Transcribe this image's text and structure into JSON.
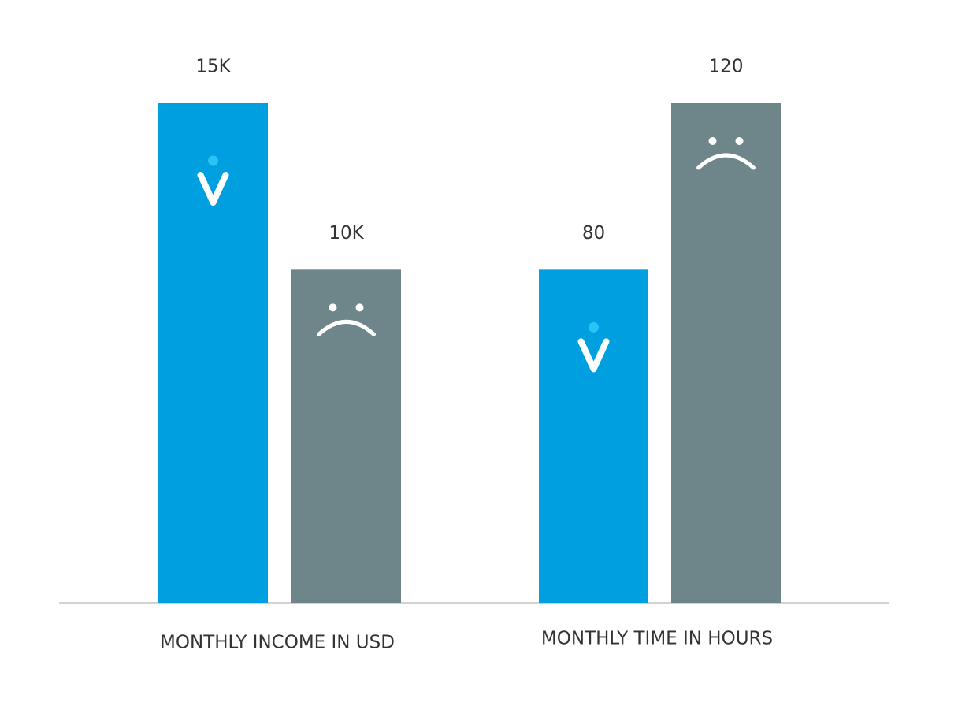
{
  "chart_data": [
    {
      "type": "bar",
      "x_label": "MONTHLY INCOME IN USD",
      "values": [
        15000,
        10000
      ],
      "value_labels": [
        "15K",
        "10K"
      ],
      "colors": [
        "#009fdf",
        "#6e8689"
      ]
    },
    {
      "type": "bar",
      "x_label": "MONTHLY TIME IN HOURS",
      "values": [
        80,
        120
      ],
      "colors": [
        "#009fdf",
        "#6e8689"
      ]
    }
  ]
}
